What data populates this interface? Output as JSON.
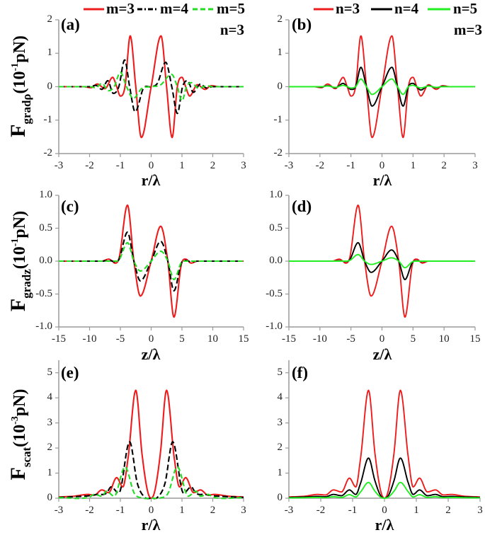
{
  "chart_data": [
    {
      "panel": "(a)",
      "type": "line",
      "annotation": "n=3",
      "xlabel": "r/λ",
      "ylabel": {
        "main": "F",
        "sub": "gradρ",
        "open": "(10",
        "sup": "-1",
        "unit": "pN)"
      },
      "xlim": [
        -3,
        3
      ],
      "ylim": [
        -2,
        2
      ],
      "xticks": [
        "-3",
        "-2",
        "-1",
        "0",
        "1",
        "2",
        "3"
      ],
      "yticks": [
        "-2",
        "-1",
        "0",
        "1",
        "2"
      ],
      "grid": false,
      "legend": "top",
      "series": [
        {
          "name": "m=3",
          "color": "#ee1c1c",
          "dash": "solid",
          "x": [
            -3,
            -2.2,
            -1.95,
            -1.75,
            -1.5,
            -1.25,
            -1.12,
            -1.0,
            -0.85,
            -0.68,
            -0.5,
            -0.32,
            0,
            0.32,
            0.5,
            0.68,
            0.85,
            1.0,
            1.12,
            1.25,
            1.5,
            1.75,
            1.95,
            2.2,
            3
          ],
          "y": [
            0,
            0,
            -0.03,
            0.08,
            -0.06,
            0.28,
            0,
            -0.28,
            0,
            1.52,
            0,
            -1.52,
            0,
            1.52,
            0,
            -1.52,
            0,
            0.28,
            0,
            -0.28,
            0.06,
            -0.08,
            0.03,
            0,
            0
          ]
        },
        {
          "name": "m=4",
          "color": "#000000",
          "dash": "dash-dot",
          "x": [
            -3,
            -2.0,
            -1.8,
            -1.6,
            -1.41,
            -1.23,
            -1.05,
            -0.86,
            -0.7,
            -0.52,
            -0.25,
            0,
            0.2,
            0.47,
            0.67,
            0.85,
            1.02,
            1.18,
            1.37,
            1.6,
            1.8,
            2.0,
            3
          ],
          "y": [
            0,
            0,
            0.04,
            -0.08,
            0.18,
            -0.2,
            0,
            0.8,
            0,
            -0.75,
            -0.05,
            0,
            0.1,
            0.73,
            0,
            -0.8,
            0,
            0.18,
            -0.17,
            0.08,
            -0.04,
            0,
            0
          ]
        },
        {
          "name": "m=5",
          "color": "#22dd22",
          "dash": "dashed",
          "x": [
            -3,
            -2.0,
            -1.8,
            -1.6,
            -1.38,
            -1.2,
            -1.0,
            -0.8,
            -0.58,
            -0.3,
            0,
            0.3,
            0.66,
            0.85,
            1.0,
            1.15,
            1.3,
            1.55,
            1.8,
            2.0,
            3
          ],
          "y": [
            0,
            0,
            -0.03,
            0.1,
            -0.12,
            0,
            0.43,
            0,
            -0.35,
            -0.05,
            0,
            0.05,
            0.37,
            0,
            -0.42,
            0,
            0.12,
            -0.05,
            0.03,
            0,
            0
          ]
        }
      ]
    },
    {
      "panel": "(b)",
      "type": "line",
      "annotation": "m=3",
      "xlabel": "r/λ",
      "xlim": [
        -3,
        3
      ],
      "ylim": [
        -2,
        2
      ],
      "xticks": [
        "-3",
        "-2",
        "-1",
        "0",
        "1",
        "2",
        "3"
      ],
      "yticks": [
        "-2",
        "-1",
        "0",
        "1",
        "2"
      ],
      "grid": false,
      "legend": "top",
      "series": [
        {
          "name": "n=3",
          "color": "#ee1c1c",
          "dash": "solid",
          "x": [
            -3,
            -2.2,
            -1.95,
            -1.75,
            -1.5,
            -1.25,
            -1.12,
            -1.0,
            -0.85,
            -0.68,
            -0.5,
            -0.32,
            0,
            0.32,
            0.5,
            0.68,
            0.85,
            1.0,
            1.12,
            1.25,
            1.5,
            1.75,
            1.95,
            2.2,
            3
          ],
          "y": [
            0,
            0,
            -0.03,
            0.08,
            -0.06,
            0.28,
            0,
            -0.28,
            0,
            1.52,
            0,
            -1.52,
            0,
            1.52,
            0,
            -1.52,
            0,
            0.28,
            0,
            -0.28,
            0.06,
            -0.08,
            0.03,
            0,
            0
          ]
        },
        {
          "name": "n=4",
          "color": "#000000",
          "dash": "solid",
          "x": [
            -3,
            -2.2,
            -1.95,
            -1.75,
            -1.5,
            -1.25,
            -1.12,
            -1.0,
            -0.85,
            -0.68,
            -0.5,
            -0.32,
            0,
            0.32,
            0.5,
            0.68,
            0.85,
            1.0,
            1.12,
            1.25,
            1.5,
            1.75,
            1.95,
            2.2,
            3
          ],
          "y": [
            0,
            0,
            -0.01,
            0.03,
            -0.03,
            0.1,
            0,
            -0.08,
            0,
            0.58,
            0,
            -0.58,
            0,
            0.58,
            0,
            -0.58,
            0,
            0.1,
            0,
            -0.1,
            0.03,
            -0.03,
            0.01,
            0,
            0
          ]
        },
        {
          "name": "n=5",
          "color": "#22ee22",
          "dash": "solid",
          "x": [
            -3,
            -2.2,
            -1.95,
            -1.75,
            -1.5,
            -1.25,
            -1.12,
            -1.0,
            -0.85,
            -0.68,
            -0.5,
            -0.32,
            0,
            0.32,
            0.5,
            0.68,
            0.85,
            1.0,
            1.12,
            1.25,
            1.5,
            1.75,
            1.95,
            2.2,
            3
          ],
          "y": [
            0,
            0,
            0,
            0.02,
            -0.02,
            0.04,
            0,
            -0.04,
            0,
            0.23,
            0,
            -0.23,
            0,
            0.23,
            0,
            -0.23,
            0,
            0.04,
            0,
            -0.04,
            0.02,
            -0.02,
            0,
            0,
            0
          ]
        }
      ]
    },
    {
      "panel": "(c)",
      "type": "line",
      "xlabel": "z/λ",
      "ylabel": {
        "main": "F",
        "sub": "gradz",
        "open": "(10",
        "sup": "-1",
        "unit": "pN)"
      },
      "xlim": [
        -15,
        15
      ],
      "ylim": [
        -1,
        1
      ],
      "xticks": [
        "-15",
        "-10",
        "-5",
        "0",
        "5",
        "10",
        "15"
      ],
      "yticks": [
        "-1.0",
        "-0.5",
        "0.0",
        "0.5",
        "1.0"
      ],
      "grid": false,
      "series": [
        {
          "name": "m=3",
          "color": "#ee1c1c",
          "dash": "solid",
          "x": [
            -15,
            -8,
            -6.9,
            -6.3,
            -5.9,
            -5.2,
            -3.85,
            -2.8,
            -1.75,
            0,
            1.55,
            2.7,
            3.7,
            4.9,
            5.6,
            6.5,
            7.5,
            15
          ],
          "y": [
            0,
            0,
            0.03,
            0,
            -0.03,
            0.05,
            0.85,
            0,
            -0.53,
            0,
            0.53,
            0,
            -0.85,
            -0.05,
            0.03,
            -0.03,
            0,
            0
          ]
        },
        {
          "name": "m=4",
          "color": "#000000",
          "dash": "dash-dot",
          "x": [
            -15,
            -8,
            -6.9,
            -6.3,
            -5.9,
            -5.2,
            -3.85,
            -2.8,
            -1.75,
            0,
            1.55,
            2.7,
            3.7,
            4.9,
            5.6,
            6.5,
            7.5,
            15
          ],
          "y": [
            0,
            0,
            0.01,
            0,
            -0.01,
            0.03,
            0.44,
            0,
            -0.3,
            0,
            0.3,
            0,
            -0.45,
            -0.03,
            0.01,
            -0.01,
            0,
            0
          ]
        },
        {
          "name": "m=5",
          "color": "#22dd22",
          "dash": "dashed",
          "x": [
            -15,
            -8,
            -6.9,
            -6.3,
            -5.9,
            -5.2,
            -3.85,
            -2.8,
            -1.75,
            0,
            1.55,
            2.7,
            3.7,
            4.9,
            5.6,
            6.5,
            7.5,
            15
          ],
          "y": [
            0,
            0,
            0,
            0,
            0,
            0.02,
            0.28,
            0,
            -0.15,
            0,
            0.15,
            0,
            -0.28,
            -0.02,
            0,
            0,
            0,
            0
          ]
        }
      ]
    },
    {
      "panel": "(d)",
      "type": "line",
      "xlabel": "z/λ",
      "xlim": [
        -15,
        15
      ],
      "ylim": [
        -1,
        1
      ],
      "xticks": [
        "-15",
        "-10",
        "-5",
        "0",
        "5",
        "10",
        "15"
      ],
      "yticks": [
        "-1.0",
        "-0.5",
        "0.0",
        "0.5",
        "1.0"
      ],
      "grid": false,
      "series": [
        {
          "name": "n=3",
          "color": "#ee1c1c",
          "dash": "solid",
          "x": [
            -15,
            -8,
            -6.9,
            -6.3,
            -5.9,
            -5.2,
            -3.85,
            -2.8,
            -1.75,
            0,
            1.55,
            2.7,
            3.7,
            4.9,
            5.6,
            6.5,
            7.5,
            15
          ],
          "y": [
            0,
            0,
            0.03,
            0,
            -0.03,
            0.05,
            0.85,
            0,
            -0.53,
            0,
            0.53,
            0,
            -0.85,
            -0.05,
            0.03,
            -0.03,
            0,
            0
          ]
        },
        {
          "name": "n=4",
          "color": "#000000",
          "dash": "solid",
          "x": [
            -15,
            -8,
            -6.9,
            -6.3,
            -5.9,
            -5.2,
            -3.85,
            -2.8,
            -1.75,
            0,
            1.55,
            2.7,
            3.7,
            4.9,
            5.6,
            6.5,
            7.5,
            15
          ],
          "y": [
            0,
            0,
            0.005,
            0,
            -0.005,
            0.02,
            0.28,
            0,
            -0.17,
            0,
            0.17,
            0,
            -0.28,
            -0.02,
            0.005,
            -0.005,
            0,
            0
          ]
        },
        {
          "name": "n=5",
          "color": "#22ee22",
          "dash": "solid",
          "x": [
            -15,
            -8,
            -6.9,
            -6.3,
            -5.9,
            -5.2,
            -3.85,
            -2.8,
            -1.75,
            0,
            1.55,
            2.7,
            3.7,
            4.9,
            5.6,
            6.5,
            7.5,
            15
          ],
          "y": [
            0,
            0,
            0,
            0,
            0,
            0.01,
            0.1,
            0,
            -0.05,
            0,
            0.05,
            0,
            -0.1,
            -0.01,
            0,
            0,
            0,
            0
          ]
        }
      ]
    },
    {
      "panel": "(e)",
      "type": "line",
      "xlabel": "r/λ",
      "ylabel": {
        "main": "F",
        "sub": "scat",
        "open": "(10",
        "sup": "-3",
        "unit": "pN)"
      },
      "xlim": [
        -3,
        3
      ],
      "ylim": [
        0,
        5.5
      ],
      "xticks": [
        "-3",
        "-2",
        "-1",
        "0",
        "1",
        "2",
        "3"
      ],
      "yticks": [
        "0",
        "1",
        "2",
        "3",
        "4",
        "5"
      ],
      "grid": false,
      "series": [
        {
          "name": "m=3",
          "color": "#ee1c1c",
          "dash": "solid",
          "x": [
            -3,
            -2.5,
            -2.05,
            -1.85,
            -1.6,
            -1.38,
            -1.12,
            -0.92,
            -0.75,
            -0.5,
            -0.3,
            -0.12,
            0,
            0.12,
            0.3,
            0.5,
            0.75,
            0.92,
            1.12,
            1.38,
            1.6,
            1.85,
            2.05,
            2.5,
            3
          ],
          "y": [
            0.05,
            0.08,
            0.15,
            0.12,
            0.33,
            0.22,
            0.82,
            0.45,
            1.6,
            4.3,
            1.8,
            0.3,
            0,
            0.3,
            1.8,
            4.3,
            1.6,
            0.45,
            0.82,
            0.22,
            0.33,
            0.12,
            0.15,
            0.08,
            0.05
          ]
        },
        {
          "name": "m=4",
          "color": "#000000",
          "dash": "dash-dot",
          "x": [
            -3,
            -2.5,
            -2.0,
            -1.75,
            -1.45,
            -1.3,
            -1.05,
            -0.7,
            -0.45,
            -0.2,
            0,
            0.2,
            0.45,
            0.7,
            1.05,
            1.3,
            1.45,
            1.75,
            2.0,
            2.5,
            3
          ],
          "y": [
            0.03,
            0.06,
            0.1,
            0.15,
            0.2,
            0.45,
            0.2,
            2.25,
            0.6,
            0.03,
            0,
            0.03,
            0.6,
            2.25,
            0.2,
            0.45,
            0.2,
            0.15,
            0.1,
            0.06,
            0.03
          ]
        },
        {
          "name": "m=5",
          "color": "#22dd22",
          "dash": "dashed",
          "x": [
            -3,
            -2,
            -1.85,
            -1.6,
            -1.45,
            -1.2,
            -0.85,
            -0.55,
            -0.3,
            0,
            0.3,
            0.55,
            0.85,
            1.2,
            1.45,
            1.6,
            1.85,
            2,
            3
          ],
          "y": [
            0.02,
            0.05,
            0.15,
            0.08,
            0.28,
            0.08,
            1.25,
            0.2,
            0.01,
            0,
            0.01,
            0.2,
            1.25,
            0.08,
            0.28,
            0.08,
            0.15,
            0.05,
            0.02
          ]
        }
      ]
    },
    {
      "panel": "(f)",
      "type": "line",
      "xlabel": "r/λ",
      "xlim": [
        -3,
        3
      ],
      "ylim": [
        0,
        5.5
      ],
      "xticks": [
        "-3",
        "-2",
        "-1",
        "0",
        "1",
        "2",
        "3"
      ],
      "yticks": [
        "0",
        "1",
        "2",
        "3",
        "4",
        "5"
      ],
      "grid": false,
      "series": [
        {
          "name": "n=3",
          "color": "#ee1c1c",
          "dash": "solid",
          "x": [
            -3,
            -2.5,
            -2.1,
            -1.85,
            -1.6,
            -1.35,
            -1.1,
            -0.9,
            -0.75,
            -0.5,
            -0.3,
            -0.12,
            0,
            0.12,
            0.3,
            0.5,
            0.75,
            0.9,
            1.1,
            1.35,
            1.6,
            1.85,
            2.1,
            2.5,
            3
          ],
          "y": [
            0.05,
            0.08,
            0.15,
            0.13,
            0.33,
            0.25,
            0.8,
            0.45,
            1.6,
            4.3,
            1.8,
            0.3,
            0,
            0.3,
            1.8,
            4.3,
            1.6,
            0.45,
            0.8,
            0.25,
            0.33,
            0.13,
            0.15,
            0.08,
            0.05
          ]
        },
        {
          "name": "n=4",
          "color": "#000000",
          "dash": "solid",
          "x": [
            -3,
            -2.5,
            -2.1,
            -1.85,
            -1.6,
            -1.35,
            -1.1,
            -0.9,
            -0.75,
            -0.5,
            -0.3,
            -0.12,
            0,
            0.12,
            0.3,
            0.5,
            0.75,
            0.9,
            1.1,
            1.35,
            1.6,
            1.85,
            2.1,
            2.5,
            3
          ],
          "y": [
            0.03,
            0.05,
            0.07,
            0.06,
            0.15,
            0.1,
            0.33,
            0.15,
            0.6,
            1.6,
            0.7,
            0.1,
            0,
            0.1,
            0.7,
            1.6,
            0.6,
            0.15,
            0.33,
            0.1,
            0.15,
            0.06,
            0.07,
            0.05,
            0.03
          ]
        },
        {
          "name": "n=5",
          "color": "#22ee22",
          "dash": "solid",
          "x": [
            -3,
            -2.5,
            -2.1,
            -1.85,
            -1.6,
            -1.35,
            -1.1,
            -0.9,
            -0.75,
            -0.5,
            -0.3,
            -0.12,
            0,
            0.12,
            0.3,
            0.5,
            0.75,
            0.9,
            1.1,
            1.35,
            1.6,
            1.85,
            2.1,
            2.5,
            3
          ],
          "y": [
            0.01,
            0.02,
            0.03,
            0.02,
            0.06,
            0.03,
            0.14,
            0.05,
            0.25,
            0.63,
            0.28,
            0.04,
            0,
            0.04,
            0.28,
            0.63,
            0.25,
            0.05,
            0.14,
            0.03,
            0.06,
            0.02,
            0.03,
            0.02,
            0.01
          ]
        }
      ]
    }
  ]
}
